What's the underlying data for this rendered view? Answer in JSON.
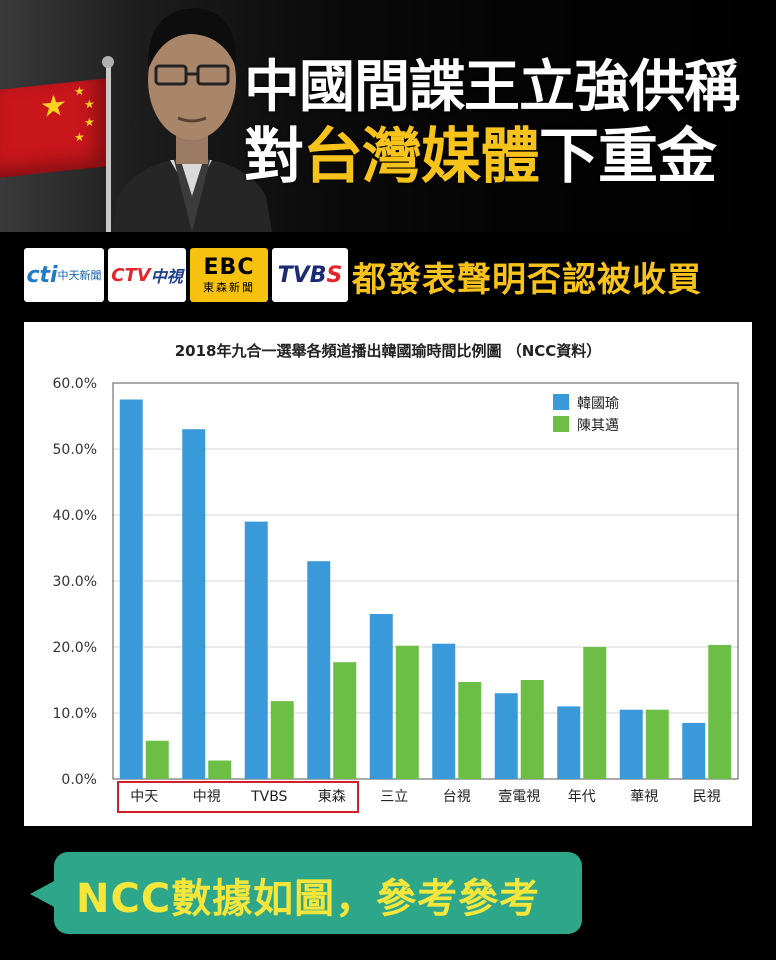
{
  "header": {
    "title_line1": "中國間諜王立強供稱",
    "title_line2_parts": [
      "對",
      "台灣媒體",
      "下重金"
    ]
  },
  "logos": {
    "cti": {
      "mark": "cti",
      "label": "中天新聞"
    },
    "ctv": {
      "mark": "CTV",
      "label": "中視"
    },
    "ebc": {
      "mark": "EBC",
      "label": "東森新聞"
    },
    "tvbs": {
      "mark_a": "TVB",
      "mark_b": "S"
    }
  },
  "subtitle": "都發表聲明否認被收買",
  "chart_data": {
    "type": "bar",
    "title": "2018年九合一選舉各頻道播出韓國瑜時間比例圖 （NCC資料）",
    "categories": [
      "中天",
      "中視",
      "TVBS",
      "東森",
      "三立",
      "台視",
      "壹電視",
      "年代",
      "華視",
      "民視"
    ],
    "series": [
      {
        "name": "韓國瑜",
        "color": "#3a9ad9",
        "values": [
          57.5,
          53.0,
          39.0,
          33.0,
          25.0,
          20.5,
          13.0,
          11.0,
          10.5,
          8.5
        ]
      },
      {
        "name": "陳其邁",
        "color": "#6cbe45",
        "values": [
          5.8,
          2.8,
          11.8,
          17.7,
          20.2,
          14.7,
          15.0,
          20.0,
          10.5,
          20.3
        ]
      }
    ],
    "ylim": [
      0,
      60
    ],
    "yticks": [
      "0.0%",
      "10.0%",
      "20.0%",
      "30.0%",
      "40.0%",
      "50.0%",
      "60.0%"
    ],
    "grid": true,
    "legend": "top-right",
    "highlight_categories": [
      "中天",
      "中視",
      "TVBS",
      "東森"
    ],
    "highlight_color": "#d0202a"
  },
  "bubble": {
    "text": "NCC數據如圖，參考參考"
  }
}
